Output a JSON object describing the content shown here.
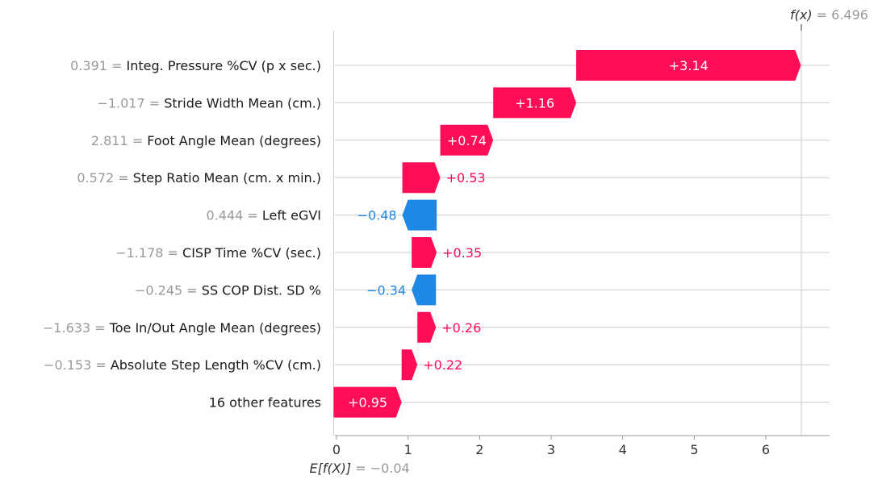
{
  "chart_data": {
    "type": "waterfall",
    "base_value": -0.04,
    "final_value": 6.496,
    "fx_label": "f(x)",
    "fx_value_text": "6.496",
    "ex_label": "E[f(X)]",
    "ex_value_text": "−0.04",
    "xlim": [
      -0.1,
      6.9
    ],
    "xticks": [
      0,
      1,
      2,
      3,
      4,
      5,
      6
    ],
    "colors": {
      "positive": "#ff0d57",
      "negative": "#1e88e5",
      "grid": "#cccccc",
      "axis": "#999999",
      "muted": "#999999",
      "text": "#1a1a1a"
    },
    "features": [
      {
        "value": "0.391",
        "name": "Integ. Pressure %CV (p x sec.)",
        "contribution": 3.14,
        "label": "+3.14"
      },
      {
        "value": "−1.017",
        "name": "Stride Width Mean (cm.)",
        "contribution": 1.16,
        "label": "+1.16"
      },
      {
        "value": "2.811",
        "name": "Foot Angle Mean (degrees)",
        "contribution": 0.74,
        "label": "+0.74"
      },
      {
        "value": "0.572",
        "name": "Step Ratio Mean (cm. x min.)",
        "contribution": 0.53,
        "label": "+0.53"
      },
      {
        "value": "0.444",
        "name": "Left eGVI",
        "contribution": -0.48,
        "label": "−0.48"
      },
      {
        "value": "−1.178",
        "name": "CISP Time %CV (sec.)",
        "contribution": 0.35,
        "label": "+0.35"
      },
      {
        "value": "−0.245",
        "name": "SS COP Dist. SD %",
        "contribution": -0.34,
        "label": "−0.34"
      },
      {
        "value": "−1.633",
        "name": "Toe In/Out Angle Mean (degrees)",
        "contribution": 0.26,
        "label": "+0.26"
      },
      {
        "value": "−0.153",
        "name": "Absolute Step Length %CV (cm.)",
        "contribution": 0.22,
        "label": "+0.22"
      },
      {
        "value": "",
        "name": "16 other features",
        "contribution": 0.95,
        "label": "+0.95"
      }
    ]
  }
}
